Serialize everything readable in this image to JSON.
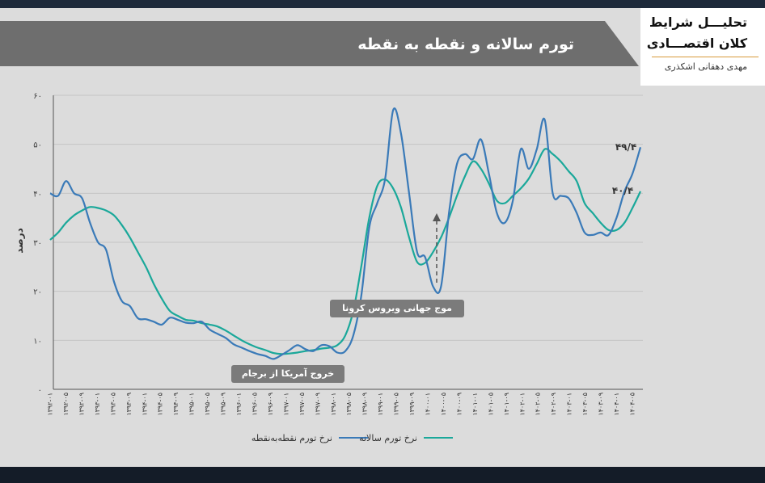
{
  "title": "تورم سالانه و نقطه به نقطه",
  "logo": {
    "line1": "تحلیـــل شرایط",
    "line2": "کلان اقتصـــادی",
    "author": "مهدی دهقانی اشکذری"
  },
  "colors": {
    "point_to_point": "#3a7ab8",
    "annual": "#1aa89a",
    "header_bg": "#6e6e6e",
    "annotation_bg": "#7b7b7b"
  },
  "chart_data": {
    "type": "line",
    "title": "تورم سالانه و نقطه به نقطه",
    "ylabel": "درصد",
    "xlabel": "",
    "ylim": [
      0,
      60
    ],
    "y_ticks": [
      "۰",
      "۱۰",
      "۲۰",
      "۳۰",
      "۴۰",
      "۵۰",
      "۶۰"
    ],
    "y_tick_values": [
      0,
      10,
      20,
      30,
      40,
      50,
      60
    ],
    "grid": true,
    "x_tick_labels": [
      "۱۳۹۲-۰۱",
      "۱۳۹۲-۰۵",
      "۱۳۹۲-۰۹",
      "۱۳۹۳-۰۱",
      "۱۳۹۳-۰۵",
      "۱۳۹۳-۰۹",
      "۱۳۹۴-۰۱",
      "۱۳۹۴-۰۵",
      "۱۳۹۴-۰۹",
      "۱۳۹۵-۰۱",
      "۱۳۹۵-۰۵",
      "۱۳۹۵-۰۹",
      "۱۳۹۶-۰۱",
      "۱۳۹۶-۰۵",
      "۱۳۹۶-۰۹",
      "۱۳۹۷-۰۱",
      "۱۳۹۷-۰۵",
      "۱۳۹۷-۰۹",
      "۱۳۹۸-۰۱",
      "۱۳۹۸-۰۵",
      "۱۳۹۸-۰۹",
      "۱۳۹۹-۰۱",
      "۱۳۹۹-۰۵",
      "۱۳۹۹-۰۹",
      "۱۴۰۰-۰۱",
      "۱۴۰۰-۰۵",
      "۱۴۰۰-۰۹",
      "۱۴۰۱-۰۱",
      "۱۴۰۱-۰۵",
      "۱۴۰۱-۰۹",
      "۱۴۰۲-۰۱",
      "۱۴۰۲-۰۵",
      "۱۴۰۲-۰۹",
      "۱۴۰۳-۰۱",
      "۱۴۰۳-۰۵",
      "۱۴۰۳-۰۹",
      "۱۴۰۴-۰۱",
      "۱۴۰۴-۰۵"
    ],
    "series": [
      {
        "name": "نرخ تورم نقطه‌به‌نقطه",
        "color": "#3a7ab8",
        "values": [
          40,
          39.5,
          42.5,
          40,
          39,
          34,
          30,
          28.5,
          22,
          18,
          17,
          14.5,
          14.3,
          13.8,
          13.2,
          14.6,
          14.2,
          13.6,
          13.5,
          13.8,
          12.2,
          11.3,
          10.5,
          9.2,
          8.5,
          7.8,
          7.2,
          6.8,
          6.2,
          7,
          8,
          9,
          8.2,
          7.8,
          9,
          8.8,
          7.5,
          7.8,
          11,
          19,
          33,
          38,
          43,
          57,
          52,
          40,
          28,
          27,
          21,
          21,
          36,
          46,
          48,
          47,
          51,
          44,
          36,
          34,
          38.5,
          49,
          45,
          49,
          55,
          40,
          39.5,
          39,
          36,
          32,
          31.5,
          32,
          31.5,
          35,
          40.4,
          44,
          49.4
        ]
      },
      {
        "name": "نرخ تورم سالانه",
        "color": "#1aa89a",
        "values": [
          30.5,
          32,
          34,
          35.5,
          36.5,
          37.2,
          37,
          36.5,
          35.5,
          33.5,
          31,
          28,
          25,
          21.5,
          18.5,
          16,
          15,
          14.2,
          14,
          13.5,
          13.2,
          12.8,
          12,
          11,
          10,
          9.2,
          8.5,
          8,
          7.4,
          7.2,
          7.3,
          7.5,
          7.8,
          8,
          8.3,
          8.5,
          9,
          11,
          16,
          25,
          35,
          41.5,
          42.8,
          41,
          37,
          31,
          26,
          25.8,
          28,
          31,
          35,
          39.5,
          43.5,
          46.5,
          45,
          42,
          38.5,
          38,
          39.5,
          41,
          43,
          46,
          49,
          48,
          46.5,
          44.5,
          42.5,
          38,
          36,
          34,
          32.5,
          32.5,
          34,
          37,
          40.4
        ]
      }
    ],
    "end_labels": [
      "۴۹/۴",
      "۴۰/۴"
    ],
    "annotations": [
      "خروج آمریکا از برجام",
      "موج جهانی ویروس کرونا"
    ],
    "legend": [
      "نرخ تورم نقطه‌به‌نقطه",
      "نرخ تورم سالانه"
    ],
    "legend_position": "bottom"
  }
}
